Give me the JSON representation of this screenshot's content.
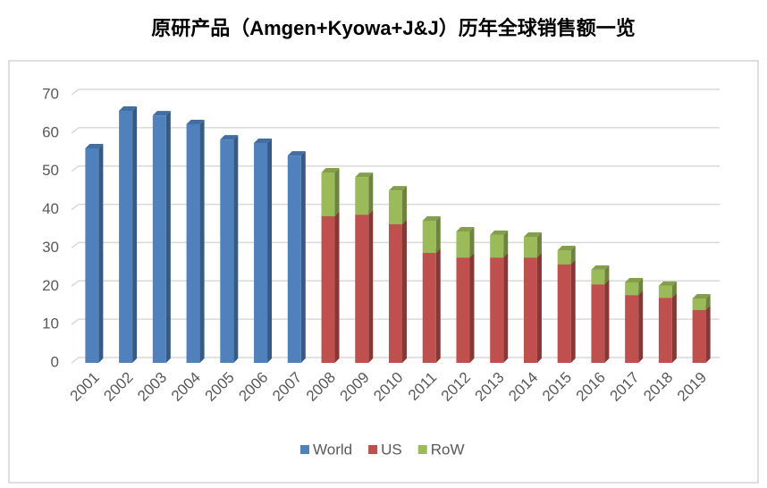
{
  "chart_data": {
    "type": "bar",
    "stacked": true,
    "title": "原研产品（Amgen+Kyowa+J&J）历年全球销售额一览",
    "categories": [
      "2001",
      "2002",
      "2003",
      "2004",
      "2005",
      "2006",
      "2007",
      "2008",
      "2009",
      "2010",
      "2011",
      "2012",
      "2013",
      "2014",
      "2015",
      "2016",
      "2017",
      "2018",
      "2019"
    ],
    "series": [
      {
        "name": "World",
        "color": "#4f81bd",
        "values": [
          56,
          65.8,
          64.6,
          62.3,
          58.3,
          57.4,
          54.1,
          null,
          null,
          null,
          null,
          null,
          null,
          null,
          null,
          null,
          null,
          null,
          null
        ]
      },
      {
        "name": "US",
        "color": "#c0504d",
        "values": [
          null,
          null,
          null,
          null,
          null,
          null,
          null,
          38.3,
          38.7,
          36.2,
          28.7,
          27.5,
          27.5,
          27.5,
          25.7,
          20.5,
          17.7,
          17,
          13.8
        ]
      },
      {
        "name": "RoW",
        "color": "#9bbb59",
        "values": [
          null,
          null,
          null,
          null,
          null,
          null,
          null,
          11.4,
          9.8,
          8.8,
          8.4,
          6.8,
          5.9,
          5.4,
          3.7,
          3.8,
          3.3,
          3.1,
          3
        ]
      }
    ],
    "ylim": [
      0,
      70
    ],
    "yticks": [
      0,
      10,
      20,
      30,
      40,
      50,
      60,
      70
    ],
    "grid": true,
    "legend": "bottom"
  }
}
